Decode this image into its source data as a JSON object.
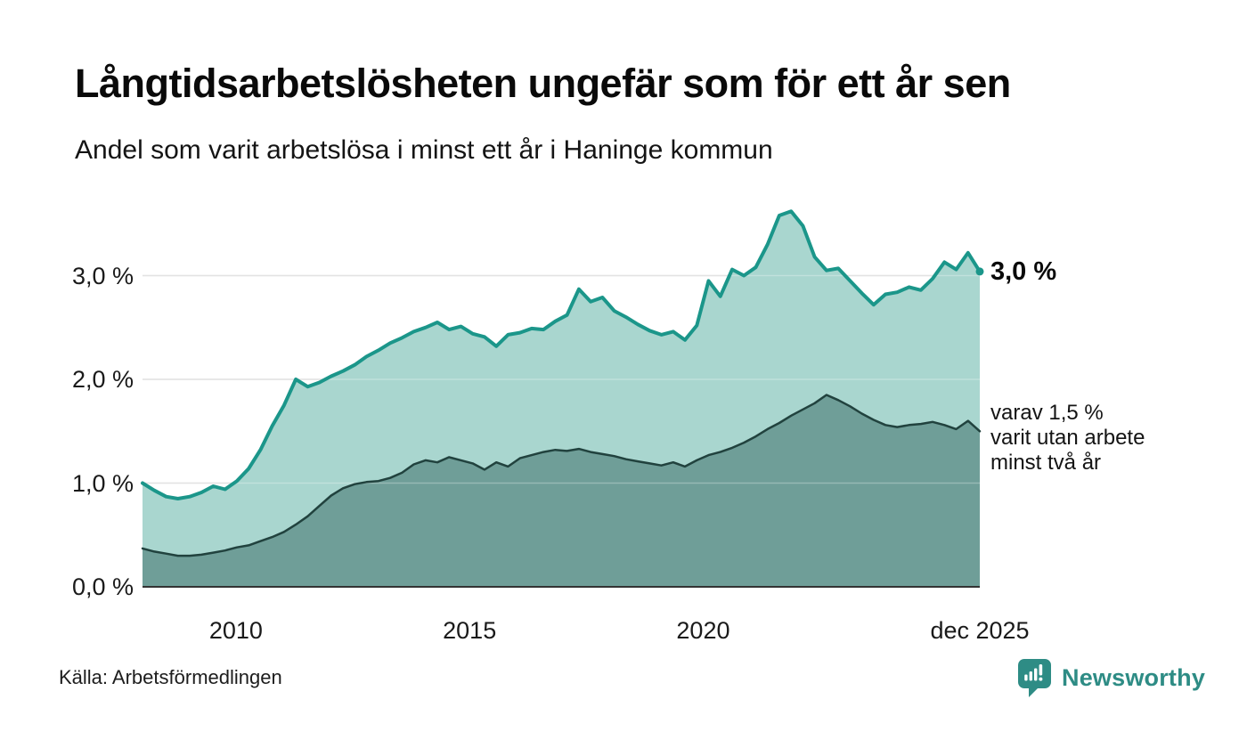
{
  "header": {
    "title": "Långtidsarbetslösheten ungefär som för ett år sen",
    "subtitle": "Andel som varit arbetslösa i minst ett år i Haninge kommun"
  },
  "annotations": {
    "end_value_label": "3,0 %",
    "secondary_lines": [
      "varav 1,5 %",
      "varit utan arbete",
      "minst två år"
    ]
  },
  "footer": {
    "source": "Källa: Arbetsförmedlingen",
    "brand": "Newsworthy",
    "brand_color": "#2e8c85"
  },
  "chart_data": {
    "type": "area",
    "title": "Långtidsarbetslösheten ungefär som för ett år sen",
    "subtitle": "Andel som varit arbetslösa i minst ett år i Haninge kommun",
    "unit": "%",
    "grid": "horizontal",
    "x_range": [
      2008,
      2025.92
    ],
    "ylim": [
      0,
      3.7
    ],
    "colors": {
      "gridline": "#d9d9d9",
      "axis_line": "#333333",
      "tick_text": "#1a1a1a"
    },
    "y_ticks": [
      {
        "value": 0,
        "label": "0,0 %"
      },
      {
        "value": 1,
        "label": "1,0 %"
      },
      {
        "value": 2,
        "label": "2,0 %"
      },
      {
        "value": 3,
        "label": "3,0 %"
      }
    ],
    "x_ticks": [
      {
        "value": 2010,
        "label": "2010"
      },
      {
        "value": 2015,
        "label": "2015"
      },
      {
        "value": 2020,
        "label": "2020"
      },
      {
        "value": 2025.92,
        "label": "dec 2025"
      }
    ],
    "series": [
      {
        "id": "minst-ett-ar",
        "label": "arbetslösa minst ett år",
        "line_color": "#1b968a",
        "fill_color": "#a9d6cf",
        "line_width": 4,
        "end_dot": true,
        "end_value": 3.0,
        "end_value_label": "3,0 %",
        "values": [
          1.0,
          0.93,
          0.87,
          0.85,
          0.87,
          0.91,
          0.97,
          0.94,
          1.02,
          1.14,
          1.32,
          1.55,
          1.75,
          2.0,
          1.93,
          1.97,
          2.03,
          2.08,
          2.14,
          2.22,
          2.28,
          2.35,
          2.4,
          2.46,
          2.5,
          2.55,
          2.48,
          2.51,
          2.44,
          2.41,
          2.32,
          2.43,
          2.45,
          2.49,
          2.48,
          2.56,
          2.62,
          2.87,
          2.75,
          2.79,
          2.66,
          2.6,
          2.53,
          2.47,
          2.43,
          2.46,
          2.38,
          2.52,
          2.95,
          2.8,
          3.06,
          3.0,
          3.08,
          3.3,
          3.58,
          3.62,
          3.48,
          3.18,
          3.05,
          3.07,
          2.95,
          2.83,
          2.72,
          2.82,
          2.84,
          2.89,
          2.86,
          2.97,
          3.13,
          3.06,
          3.22,
          3.04
        ]
      },
      {
        "id": "minst-tva-ar",
        "label": "varav utan arbete minst två år",
        "line_color": "#21423e",
        "fill_color": "#6f9e98",
        "line_width": 2.5,
        "end_dot": false,
        "end_value": 1.5,
        "end_value_label": "varav 1,5 % varit utan arbete minst två år",
        "values": [
          0.37,
          0.34,
          0.32,
          0.3,
          0.3,
          0.31,
          0.33,
          0.35,
          0.38,
          0.4,
          0.44,
          0.48,
          0.53,
          0.6,
          0.68,
          0.78,
          0.88,
          0.95,
          0.99,
          1.01,
          1.02,
          1.05,
          1.1,
          1.18,
          1.22,
          1.2,
          1.25,
          1.22,
          1.19,
          1.13,
          1.2,
          1.16,
          1.24,
          1.27,
          1.3,
          1.32,
          1.31,
          1.33,
          1.3,
          1.28,
          1.26,
          1.23,
          1.21,
          1.19,
          1.17,
          1.2,
          1.16,
          1.22,
          1.27,
          1.3,
          1.34,
          1.39,
          1.45,
          1.52,
          1.58,
          1.65,
          1.71,
          1.77,
          1.85,
          1.8,
          1.74,
          1.67,
          1.61,
          1.56,
          1.54,
          1.56,
          1.57,
          1.59,
          1.56,
          1.52,
          1.6,
          1.5
        ]
      }
    ]
  }
}
